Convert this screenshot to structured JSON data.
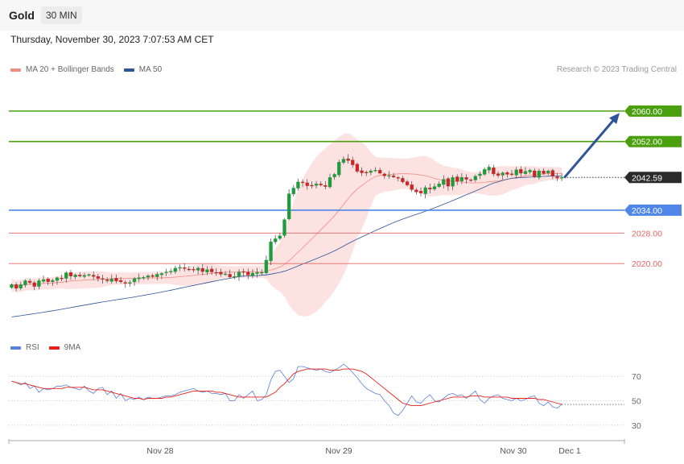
{
  "header": {
    "instrument": "Gold",
    "timeframe": "30 MIN",
    "datetime": "Thursday, November 30, 2023 7:07:53 AM CET"
  },
  "legend_main": [
    {
      "label": "MA 20 + Bollinger Bands",
      "color": "#f28b82"
    },
    {
      "label": "MA 50",
      "color": "#2e5597"
    }
  ],
  "legend_rsi": [
    {
      "label": "RSI",
      "color": "#5b7fd6"
    },
    {
      "label": "9MA",
      "color": "#e8201a"
    }
  ],
  "credit": "Research © 2023 Trading Central",
  "colors": {
    "up_candle": "#1e9b3c",
    "down_candle": "#c62828",
    "resistance": "#4aa00e",
    "support": "#4f86e8",
    "pivot": "#e06666",
    "bollinger_fill": "#fde2e2",
    "arrow": "#2e5597",
    "current_price_bg": "#2b2b2b"
  },
  "chart_data": [
    {
      "type": "candlestick",
      "title": "",
      "price_axis_range": [
        2002.5,
        2068
      ],
      "x_ticks": [
        "Nov 28",
        "Nov 29",
        "Nov 30",
        "Dec 1"
      ],
      "current_price": "2042.59",
      "levels": [
        {
          "label": "2060.00",
          "value": 2060.0,
          "kind": "resistance",
          "badge": true
        },
        {
          "label": "2052.00",
          "value": 2052.0,
          "kind": "resistance",
          "badge": true
        },
        {
          "label": "2034.00",
          "value": 2034.0,
          "kind": "support",
          "badge": true
        },
        {
          "label": "2028.00",
          "value": 2028.0,
          "kind": "pivot",
          "badge": false
        },
        {
          "label": "2020.00",
          "value": 2020.0,
          "kind": "pivot",
          "badge": false
        }
      ],
      "projection": {
        "from_price": 2042.5,
        "to_price": 2059.5
      },
      "close_series": [
        2014.5,
        2013.5,
        2014.5,
        2015.5,
        2015.0,
        2014.0,
        2015.5,
        2015.8,
        2015.2,
        2015.6,
        2016.3,
        2016.0,
        2017.6,
        2016.7,
        2017.0,
        2016.7,
        2016.9,
        2017.1,
        2016.6,
        2016.1,
        2015.9,
        2015.5,
        2016.0,
        2015.4,
        2015.2,
        2014.8,
        2015.0,
        2016.1,
        2016.3,
        2016.4,
        2016.8,
        2016.6,
        2017.2,
        2017.4,
        2017.8,
        2018.0,
        2018.8,
        2019.0,
        2018.7,
        2018.4,
        2018.3,
        2018.8,
        2017.9,
        2018.4,
        2017.8,
        2017.6,
        2017.2,
        2017.3,
        2016.5,
        2016.6,
        2017.8,
        2017.7,
        2017.0,
        2017.5,
        2017.7,
        2017.7,
        2020.9,
        2025.7,
        2026.5,
        2027.3,
        2031.5,
        2038.3,
        2039.8,
        2041.4,
        2041.2,
        2040.4,
        2040.5,
        2040.9,
        2040.6,
        2040.2,
        2042.6,
        2043.4,
        2046.6,
        2047.4,
        2047.0,
        2045.9,
        2044.2,
        2043.8,
        2043.8,
        2044.3,
        2044.5,
        2043.7,
        2043.0,
        2043.1,
        2042.7,
        2042.4,
        2041.4,
        2040.6,
        2039.4,
        2038.8,
        2038.5,
        2039.9,
        2039.5,
        2040.2,
        2040.9,
        2042.1,
        2040.3,
        2042.6,
        2041.6,
        2042.6,
        2042.1,
        2041.8,
        2042.9,
        2043.5,
        2044.7,
        2045.3,
        2043.5,
        2043.1,
        2043.8,
        2043.4,
        2043.3,
        2044.6,
        2043.7,
        2044.2,
        2044.5,
        2042.8,
        2044.3,
        2043.6,
        2044.3,
        2042.9,
        2042.4,
        2042.59
      ],
      "ma50_endpoints": [
        2006.0,
        2043.5
      ]
    },
    {
      "type": "line",
      "title": "",
      "y_ticks": [
        70,
        50,
        30
      ],
      "series": [
        {
          "name": "RSI",
          "values": [
            66,
            65,
            63,
            65,
            60,
            62,
            57,
            60,
            59,
            60,
            62,
            62,
            63,
            61,
            60,
            59,
            62,
            58,
            56,
            60,
            61,
            55,
            58,
            52,
            56,
            50,
            52,
            51,
            53,
            51,
            53,
            52,
            52,
            53,
            54,
            54,
            55,
            57,
            58,
            59,
            60,
            58,
            57,
            58,
            56,
            56,
            55,
            56,
            50,
            50,
            55,
            52,
            55,
            58,
            50,
            51,
            55,
            67,
            74,
            75,
            70,
            65,
            68,
            78,
            78,
            77,
            76,
            75,
            76,
            74,
            73,
            75,
            77,
            80,
            77,
            73,
            69,
            64,
            60,
            58,
            56,
            55,
            50,
            46,
            40,
            38,
            42,
            48,
            54,
            49,
            48,
            52,
            55,
            50,
            49,
            52,
            55,
            56,
            54,
            55,
            52,
            55,
            58,
            51,
            48,
            52,
            54,
            55,
            52,
            51,
            50,
            52,
            50,
            51,
            53,
            54,
            48,
            46,
            49,
            45,
            44,
            47
          ]
        },
        {
          "name": "9MA",
          "values": [
            66,
            65,
            64,
            64,
            63,
            62,
            61,
            60,
            60,
            60,
            60,
            60,
            61,
            61,
            61,
            61,
            61,
            60,
            59,
            59,
            59,
            58,
            57,
            56,
            55,
            54,
            53,
            52,
            52,
            51,
            52,
            52,
            52,
            52,
            53,
            53,
            54,
            55,
            56,
            57,
            58,
            58,
            58,
            58,
            58,
            57,
            57,
            56,
            55,
            54,
            53,
            53,
            53,
            53,
            53,
            53,
            53,
            55,
            57,
            61,
            64,
            68,
            72,
            74,
            75,
            76,
            76,
            76,
            76,
            76,
            75,
            75,
            75,
            76,
            76,
            76,
            75,
            74,
            72,
            69,
            66,
            63,
            60,
            57,
            54,
            51,
            48,
            47,
            46,
            46,
            46,
            47,
            48,
            49,
            50,
            51,
            52,
            53,
            53,
            53,
            53,
            54,
            54,
            54,
            53,
            53,
            53,
            53,
            53,
            53,
            52,
            52,
            52,
            52,
            52,
            52,
            51,
            51,
            50,
            49,
            48,
            47
          ]
        }
      ]
    }
  ]
}
